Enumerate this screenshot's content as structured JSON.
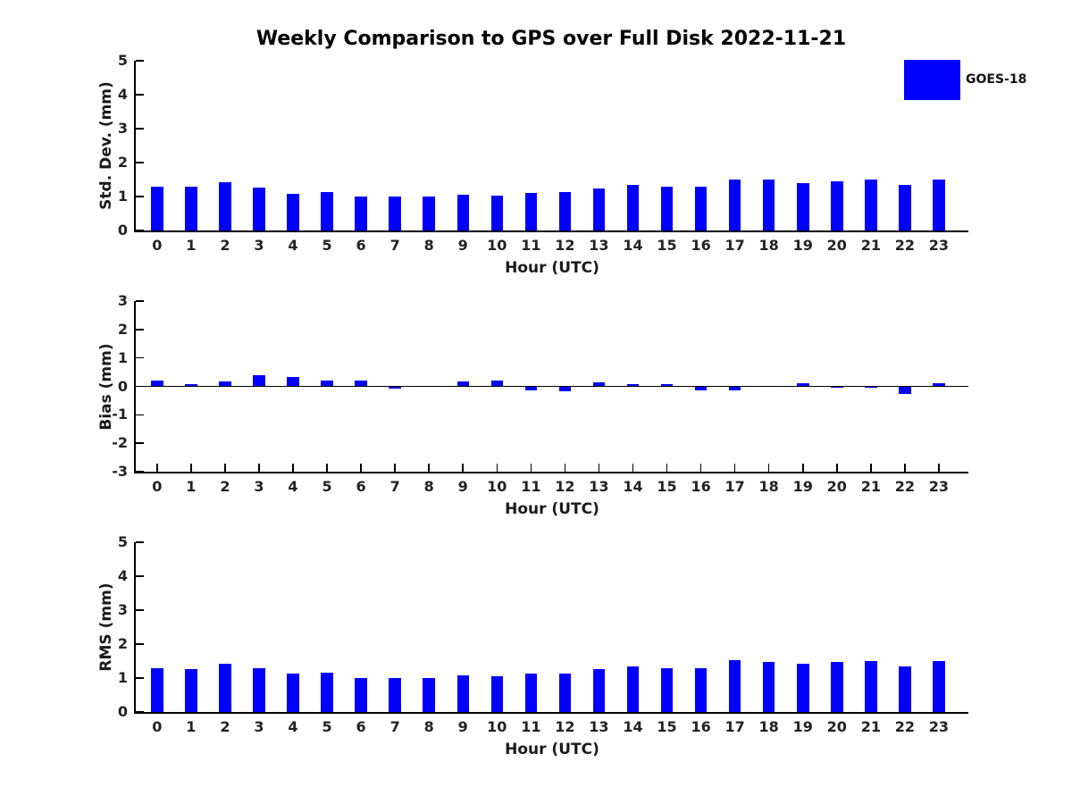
{
  "title": "Weekly Comparison to GPS over Full Disk 2022-11-21",
  "legend": {
    "label": "GOES-18",
    "color": "#0000FF"
  },
  "bar_color": "#0000FF",
  "chart_data": [
    {
      "type": "bar",
      "series_name": "GOES-18",
      "ylabel": "Std. Dev. (mm)",
      "xlabel": "Hour (UTC)",
      "ylim": [
        0,
        5
      ],
      "yticks": [
        0,
        1,
        2,
        3,
        4,
        5
      ],
      "categories": [
        "0",
        "1",
        "2",
        "3",
        "4",
        "5",
        "6",
        "7",
        "8",
        "9",
        "10",
        "11",
        "12",
        "13",
        "14",
        "15",
        "16",
        "17",
        "18",
        "19",
        "20",
        "21",
        "22",
        "23"
      ],
      "values": [
        1.29,
        1.29,
        1.41,
        1.26,
        1.09,
        1.14,
        1.0,
        1.0,
        1.0,
        1.06,
        1.03,
        1.11,
        1.13,
        1.25,
        1.35,
        1.29,
        1.28,
        1.51,
        1.49,
        1.4,
        1.46,
        1.51,
        1.33,
        1.49
      ]
    },
    {
      "type": "bar",
      "series_name": "GOES-18",
      "ylabel": "Bias (mm)",
      "xlabel": "Hour (UTC)",
      "ylim": [
        -3,
        3
      ],
      "yticks": [
        3,
        2,
        1,
        0,
        -1,
        -2,
        -3
      ],
      "categories": [
        "0",
        "1",
        "2",
        "3",
        "4",
        "5",
        "6",
        "7",
        "8",
        "9",
        "10",
        "11",
        "12",
        "13",
        "14",
        "15",
        "16",
        "17",
        "18",
        "19",
        "20",
        "21",
        "22",
        "23"
      ],
      "values": [
        0.2,
        0.07,
        0.17,
        0.4,
        0.32,
        0.21,
        0.2,
        -0.08,
        0.0,
        0.17,
        0.2,
        -0.15,
        -0.18,
        0.13,
        0.08,
        0.09,
        -0.13,
        -0.13,
        0.0,
        0.12,
        -0.05,
        -0.06,
        -0.26,
        0.1
      ]
    },
    {
      "type": "bar",
      "series_name": "GOES-18",
      "ylabel": "RMS (mm)",
      "xlabel": "Hour (UTC)",
      "ylim": [
        0,
        5
      ],
      "yticks": [
        0,
        1,
        2,
        3,
        4,
        5
      ],
      "categories": [
        "0",
        "1",
        "2",
        "3",
        "4",
        "5",
        "6",
        "7",
        "8",
        "9",
        "10",
        "11",
        "12",
        "13",
        "14",
        "15",
        "16",
        "17",
        "18",
        "19",
        "20",
        "21",
        "22",
        "23"
      ],
      "values": [
        1.3,
        1.27,
        1.41,
        1.3,
        1.12,
        1.15,
        1.01,
        0.99,
        1.01,
        1.07,
        1.04,
        1.12,
        1.13,
        1.26,
        1.35,
        1.3,
        1.29,
        1.52,
        1.48,
        1.41,
        1.47,
        1.51,
        1.35,
        1.5
      ]
    }
  ]
}
